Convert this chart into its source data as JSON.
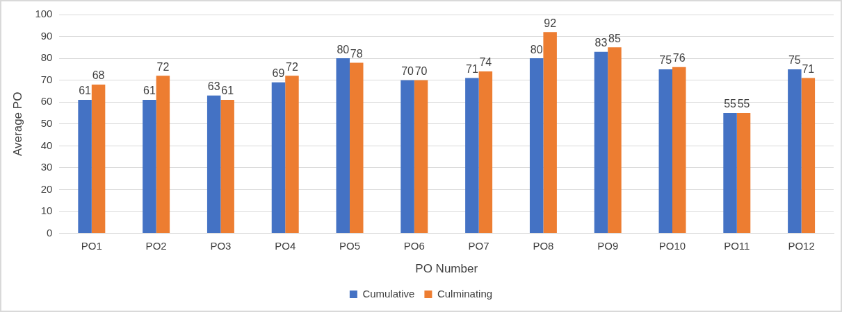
{
  "chart_data": {
    "type": "bar",
    "xlabel": "PO Number",
    "ylabel": "Average PO",
    "categories": [
      "PO1",
      "PO2",
      "PO3",
      "PO4",
      "PO5",
      "PO6",
      "PO7",
      "PO8",
      "PO9",
      "PO10",
      "PO11",
      "PO12"
    ],
    "series": [
      {
        "name": "Cumulative",
        "color": "#4472c4",
        "values": [
          61,
          61,
          63,
          69,
          80,
          70,
          71,
          80,
          83,
          75,
          55,
          75
        ]
      },
      {
        "name": "Culminating",
        "color": "#ed7d31",
        "values": [
          68,
          72,
          61,
          72,
          78,
          70,
          74,
          92,
          85,
          76,
          55,
          71
        ]
      }
    ],
    "ylim": [
      0,
      100
    ],
    "yticks": [
      0,
      10,
      20,
      30,
      40,
      50,
      60,
      70,
      80,
      90,
      100
    ],
    "grid": "y",
    "legend": "bottom",
    "data_labels": true
  }
}
